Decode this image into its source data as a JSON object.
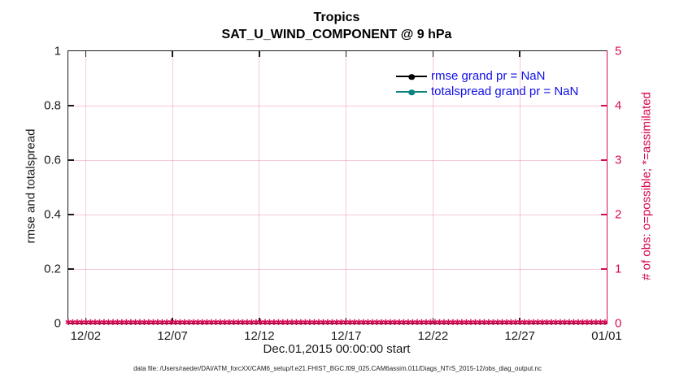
{
  "figure": {
    "title_line1": "Tropics",
    "title_line2": "SAT_U_WIND_COMPONENT @ 9 hPa",
    "caption": "data file: /Users/raeder/DAI/ATM_forcXX/CAM6_setup/f.e21.FHIST_BGC.f09_025.CAM6assim.011/Diags_NTrS_2015-12/obs_diag_output.nc"
  },
  "chart_data": {
    "type": "line",
    "title": "Tropics",
    "subtitle": "SAT_U_WIND_COMPONENT @ 9 hPa",
    "xlabel": "Dec.01,2015 00:00:00 start",
    "ylabel_left": "rmse and totalspread",
    "ylabel_right": "# of obs: o=possible; *=assimilated",
    "x_range_days": [
      0,
      31
    ],
    "x_tick_positions_days": [
      1,
      6,
      11,
      16,
      21,
      26,
      31
    ],
    "x_tick_labels": [
      "12/02",
      "12/07",
      "12/12",
      "12/17",
      "12/22",
      "12/27",
      "01/01"
    ],
    "ylim_left": [
      0,
      1
    ],
    "yticks_left": [
      "0",
      "0.2",
      "0.4",
      "0.6",
      "0.8",
      "1"
    ],
    "ylim_right": [
      0,
      5
    ],
    "yticks_right": [
      "0",
      "1",
      "2",
      "3",
      "4",
      "5"
    ],
    "grid": true,
    "legend_position": "top-right inside, no box",
    "series": [
      {
        "name": "rmse",
        "legend": "rmse grand pr = NaN",
        "grand_pr": "NaN",
        "color": "#000000",
        "line_marker": "filled-circle",
        "values": []
      },
      {
        "name": "totalspread",
        "legend": "totalspread grand pr = NaN",
        "grand_pr": "NaN",
        "color": "#0e837e",
        "line_marker": "filled-circle",
        "values": []
      },
      {
        "name": "assimilated-obs-count",
        "axis": "right",
        "marker": "*",
        "marker_glyph": "✱",
        "color": "#d70a53",
        "y_constant": 0,
        "description": "dense row of * markers at y=0 across the entire time axis"
      }
    ]
  },
  "colors": {
    "accent_crimson": "#d70a53",
    "teal": "#0e837e",
    "legend_text_blue": "#0f0fe8",
    "axis_dark": "#1a1a1a",
    "grid_pink": "rgba(215,10,83,0.22)",
    "background": "#ffffff"
  }
}
